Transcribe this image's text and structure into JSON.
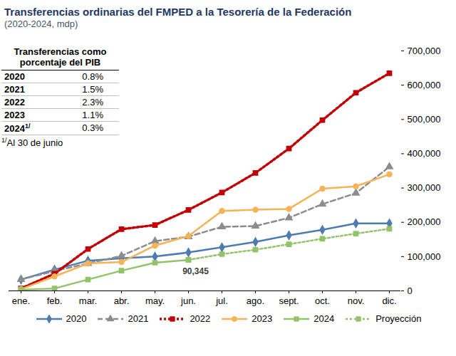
{
  "chart_data": {
    "type": "line",
    "title": "Transferencias ordinarias del FMPED a la Tesorería de la Federación",
    "subtitle": "(2020-2024, mdp)",
    "categories": [
      "ene.",
      "feb.",
      "mar.",
      "abr.",
      "may.",
      "jun.",
      "jul.",
      "ago.",
      "sept.",
      "oct.",
      "nov.",
      "dic."
    ],
    "series": [
      {
        "name": "2020",
        "color": "#4f7cb0",
        "marker": "diamond",
        "line_style": "solid",
        "values": [
          33000,
          62000,
          88000,
          95000,
          100000,
          112000,
          127000,
          143000,
          162000,
          178000,
          197000,
          197000
        ]
      },
      {
        "name": "2021",
        "color": "#8c8c8c",
        "marker": "triangle",
        "line_style": "dashed",
        "values": [
          33000,
          58000,
          80000,
          102000,
          145000,
          158000,
          187000,
          189000,
          213000,
          253000,
          285000,
          362000
        ]
      },
      {
        "name": "2022",
        "color": "#c00000",
        "marker": "square",
        "line_style": "dotted",
        "values": [
          7000,
          50000,
          122000,
          180000,
          192000,
          236000,
          287000,
          344000,
          415000,
          498000,
          578000,
          635000
        ]
      },
      {
        "name": "2023",
        "color": "#f5b358",
        "marker": "circle",
        "line_style": "solid",
        "values": [
          5000,
          42000,
          80000,
          84000,
          132000,
          160000,
          233000,
          237000,
          239000,
          298000,
          305000,
          340000
        ]
      },
      {
        "name": "2024",
        "color": "#92c36a",
        "marker": "square",
        "line_style": "solid",
        "values": [
          3000,
          7000,
          33000,
          59000,
          82000,
          90345,
          null,
          null,
          null,
          null,
          null,
          null
        ]
      },
      {
        "name": "Proyección",
        "color": "#92c36a",
        "marker": "square",
        "line_style": "dotted",
        "values": [
          null,
          null,
          null,
          null,
          null,
          90345,
          107000,
          120000,
          136000,
          152000,
          167000,
          181000
        ]
      }
    ],
    "ylim": [
      0,
      700000
    ],
    "yticks": [
      0,
      {
        "value": 100000,
        "label": "100,000"
      },
      {
        "value": 200000,
        "label": "200,000"
      },
      {
        "value": 300000,
        "label": "300,000"
      },
      {
        "value": 400000,
        "label": "400,000"
      },
      {
        "value": 500000,
        "label": "500,000"
      },
      {
        "value": 600000,
        "label": "600,000"
      },
      {
        "value": 700000,
        "label": "700,000"
      }
    ],
    "grid": false,
    "legend": "bottom",
    "annotations": [
      {
        "text": "90,345",
        "x": "jun.",
        "y": 90345
      }
    ],
    "inset_table": {
      "title": "Transferencias como porcentaje del PIB",
      "rows": [
        {
          "year": "2020",
          "value": 0.8,
          "label": "0.8%"
        },
        {
          "year": "2021",
          "value": 1.5,
          "label": "1.5%"
        },
        {
          "year": "2022",
          "value": 2.3,
          "label": "2.3%"
        },
        {
          "year": "2023",
          "value": 1.1,
          "label": "1.1%"
        },
        {
          "year": "2024",
          "note": "1/",
          "value": 0.3,
          "label": "0.3%"
        }
      ],
      "footnote": {
        "note": "1/",
        "text": "Al 30 de junio"
      }
    }
  }
}
